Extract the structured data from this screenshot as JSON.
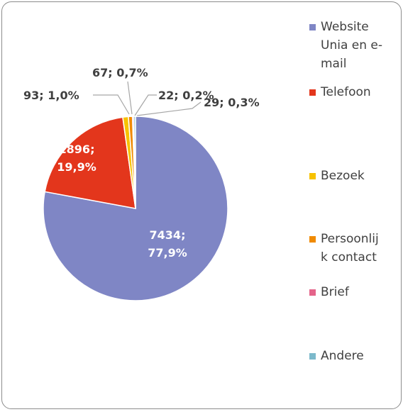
{
  "chart_data": {
    "type": "pie",
    "categories": [
      "Website Unia en e-mail",
      "Telefoon",
      "Bezoek",
      "Persoonlijk contact",
      "Brief",
      "Andere"
    ],
    "values": [
      7434,
      1896,
      93,
      67,
      22,
      29
    ],
    "value_labels": [
      "7434; 77,9%",
      "1896; 19,9%",
      "93; 1,0%",
      "67; 0,7%",
      "22; 0,2%",
      "29; 0,3%"
    ],
    "colors": [
      "#7f86c5",
      "#e3361c",
      "#f7c200",
      "#f08a00",
      "#e4648a",
      "#7cb9cb"
    ],
    "legend": "right"
  }
}
